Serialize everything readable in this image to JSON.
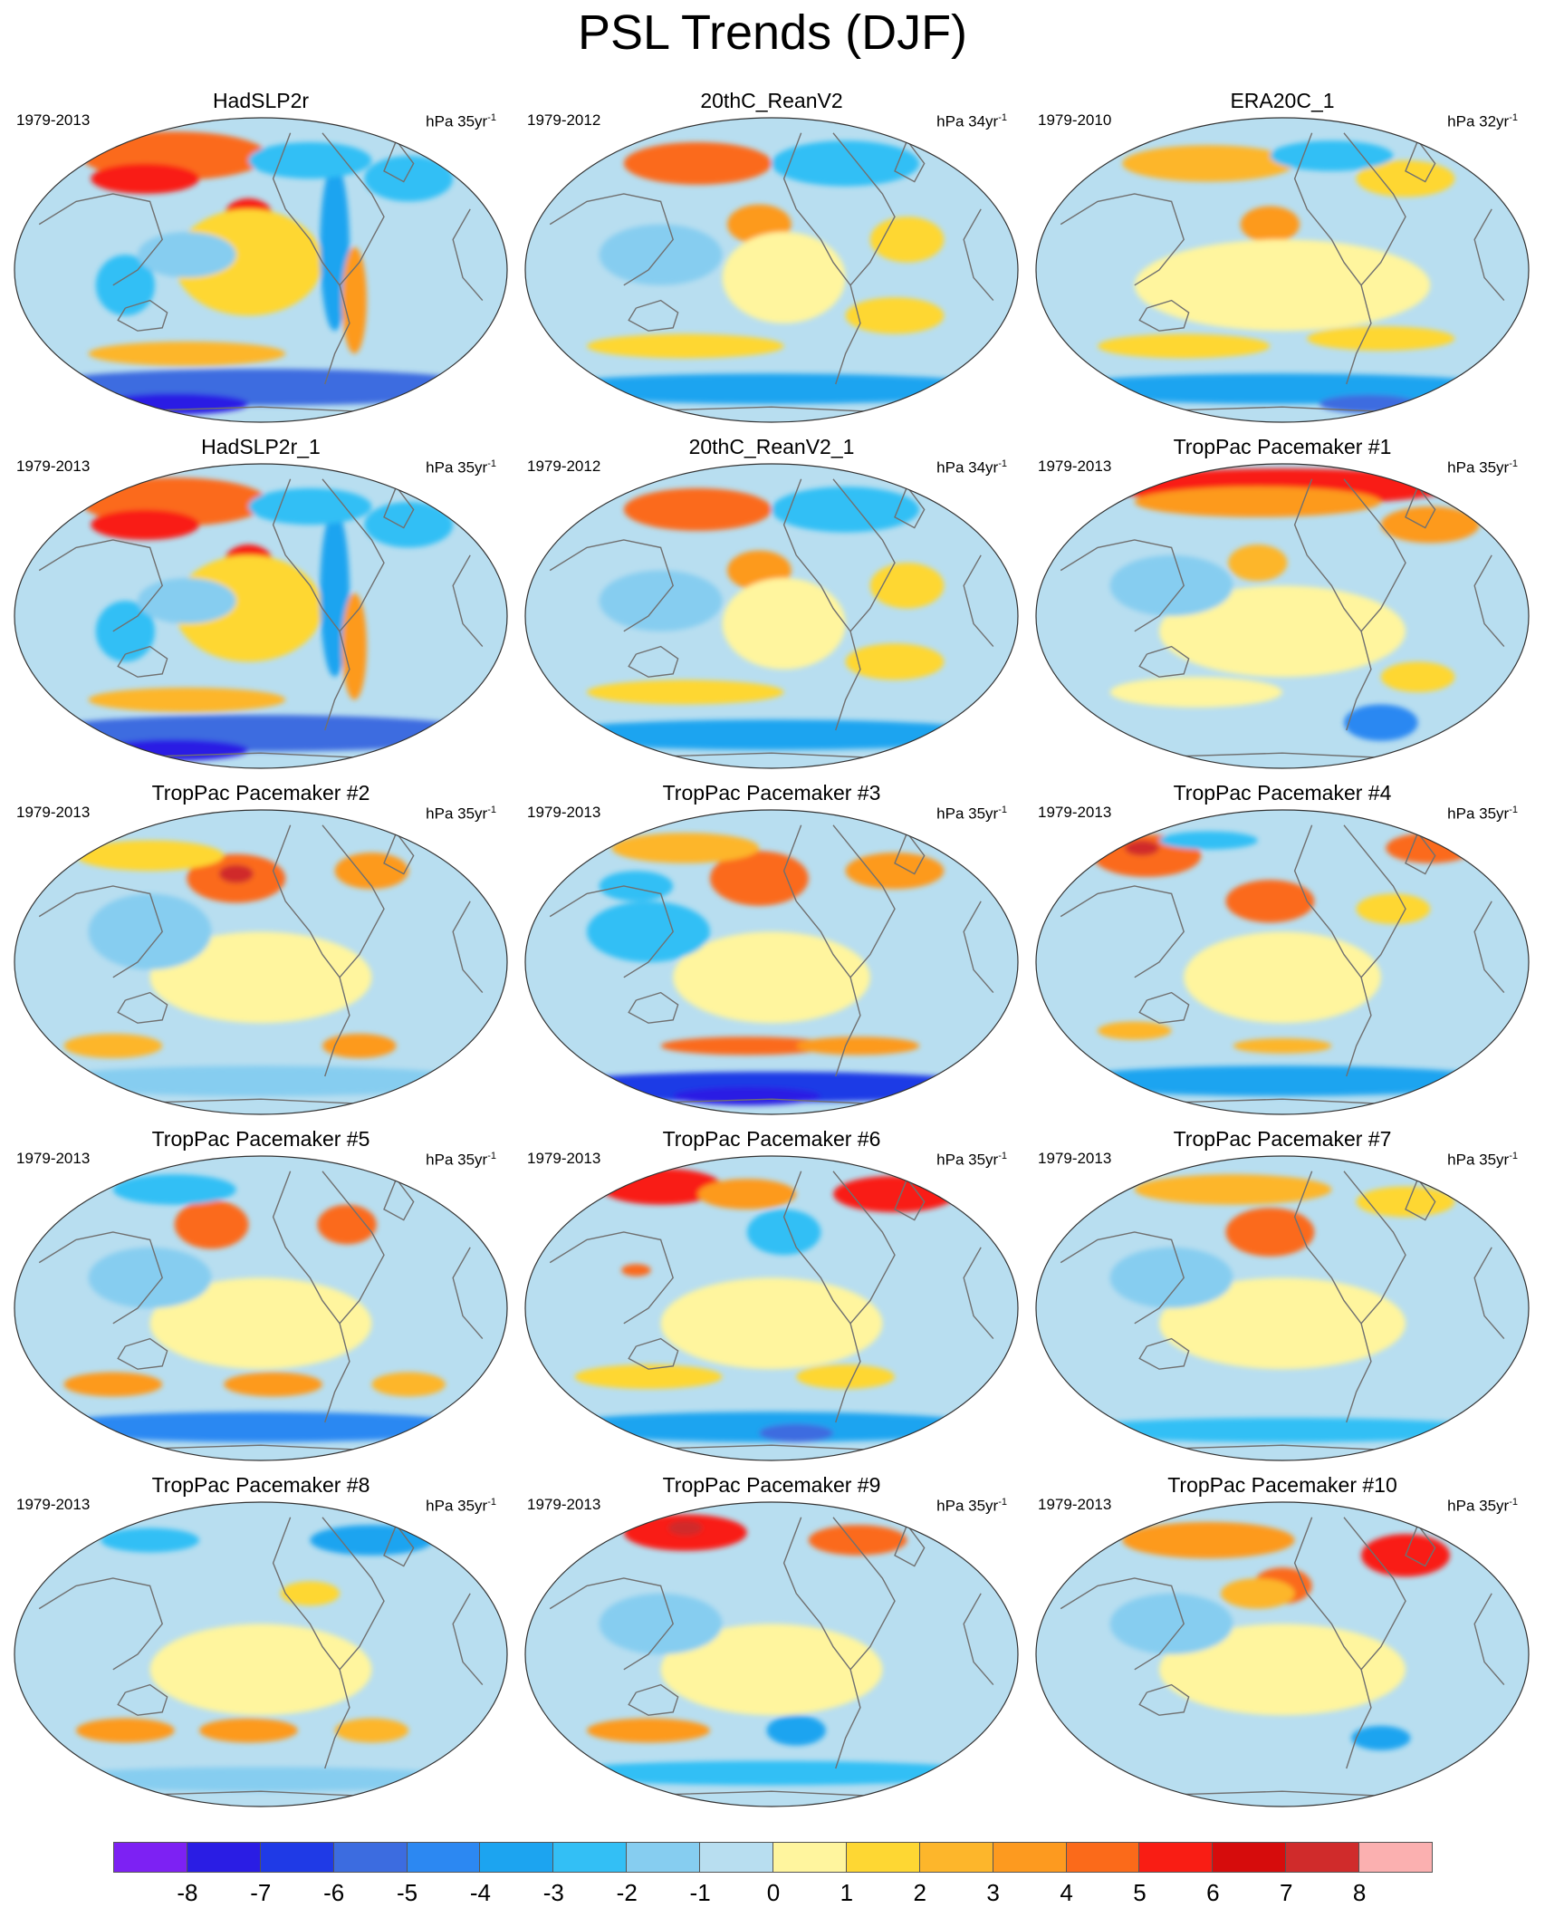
{
  "title": "PSL Trends (DJF)",
  "unit_base": "hPa",
  "unit_exp": "-1",
  "panels": [
    {
      "name": "HadSLP2r",
      "period": "1979-2013",
      "span": "35yr",
      "blobs": [
        [
          -0.35,
          -0.75,
          0.38,
          0.16,
          5
        ],
        [
          -0.47,
          -0.6,
          0.22,
          0.1,
          6
        ],
        [
          -0.05,
          -0.35,
          0.1,
          0.12,
          6
        ],
        [
          -0.05,
          -0.05,
          0.3,
          0.35,
          2
        ],
        [
          0.3,
          -0.15,
          0.06,
          0.55,
          -3
        ],
        [
          0.38,
          0.2,
          0.05,
          0.35,
          4
        ],
        [
          -0.55,
          0.1,
          0.12,
          0.2,
          -2
        ],
        [
          -0.3,
          0.55,
          0.4,
          0.08,
          3
        ],
        [
          0.0,
          0.77,
          0.95,
          0.12,
          -5
        ],
        [
          -0.35,
          0.88,
          0.3,
          0.07,
          -7
        ],
        [
          0.2,
          -0.72,
          0.25,
          0.12,
          -2
        ],
        [
          0.6,
          -0.6,
          0.18,
          0.15,
          -2
        ],
        [
          -0.3,
          -0.1,
          0.2,
          0.15,
          -1
        ]
      ]
    },
    {
      "name": "20thC_ReanV2",
      "period": "1979-2012",
      "span": "34yr",
      "blobs": [
        [
          -0.3,
          -0.7,
          0.3,
          0.14,
          5
        ],
        [
          -0.05,
          -0.3,
          0.13,
          0.13,
          4
        ],
        [
          0.05,
          0.05,
          0.25,
          0.3,
          1
        ],
        [
          0.5,
          0.3,
          0.2,
          0.12,
          2
        ],
        [
          -0.35,
          0.5,
          0.4,
          0.08,
          2
        ],
        [
          0.0,
          0.78,
          0.95,
          0.1,
          -3
        ],
        [
          -0.45,
          -0.1,
          0.25,
          0.2,
          -1
        ],
        [
          0.3,
          -0.7,
          0.3,
          0.15,
          -2
        ],
        [
          0.55,
          -0.2,
          0.15,
          0.15,
          2
        ]
      ]
    },
    {
      "name": "ERA20C_1",
      "period": "1979-2010",
      "span": "32yr",
      "blobs": [
        [
          -0.05,
          -0.3,
          0.12,
          0.12,
          4
        ],
        [
          -0.3,
          -0.7,
          0.35,
          0.12,
          3
        ],
        [
          0.5,
          -0.6,
          0.2,
          0.12,
          2
        ],
        [
          0.0,
          0.1,
          0.6,
          0.3,
          1
        ],
        [
          0.0,
          0.78,
          0.95,
          0.1,
          -3
        ],
        [
          0.35,
          0.88,
          0.2,
          0.06,
          -5
        ],
        [
          -0.4,
          0.5,
          0.35,
          0.08,
          2
        ],
        [
          0.4,
          0.45,
          0.3,
          0.08,
          2
        ],
        [
          0.2,
          -0.75,
          0.25,
          0.1,
          -2
        ]
      ]
    },
    {
      "name": "HadSLP2r_1",
      "period": "1979-2013",
      "span": "35yr",
      "blobs": [
        [
          -0.35,
          -0.75,
          0.38,
          0.16,
          5
        ],
        [
          -0.47,
          -0.6,
          0.22,
          0.1,
          6
        ],
        [
          -0.05,
          -0.35,
          0.1,
          0.12,
          6
        ],
        [
          -0.05,
          -0.05,
          0.3,
          0.35,
          2
        ],
        [
          0.3,
          -0.15,
          0.06,
          0.55,
          -3
        ],
        [
          0.38,
          0.2,
          0.05,
          0.35,
          4
        ],
        [
          -0.55,
          0.1,
          0.12,
          0.2,
          -2
        ],
        [
          -0.3,
          0.55,
          0.4,
          0.08,
          3
        ],
        [
          0.0,
          0.77,
          0.95,
          0.12,
          -5
        ],
        [
          -0.35,
          0.88,
          0.3,
          0.07,
          -7
        ],
        [
          0.2,
          -0.72,
          0.25,
          0.12,
          -2
        ],
        [
          0.6,
          -0.6,
          0.18,
          0.15,
          -2
        ],
        [
          -0.3,
          -0.1,
          0.2,
          0.15,
          -1
        ]
      ]
    },
    {
      "name": "20thC_ReanV2_1",
      "period": "1979-2012",
      "span": "34yr",
      "blobs": [
        [
          -0.3,
          -0.7,
          0.3,
          0.14,
          5
        ],
        [
          -0.05,
          -0.3,
          0.13,
          0.13,
          4
        ],
        [
          0.05,
          0.05,
          0.25,
          0.3,
          1
        ],
        [
          0.5,
          0.3,
          0.2,
          0.12,
          2
        ],
        [
          -0.35,
          0.5,
          0.4,
          0.08,
          2
        ],
        [
          0.0,
          0.78,
          0.95,
          0.1,
          -3
        ],
        [
          -0.45,
          -0.1,
          0.25,
          0.2,
          -1
        ],
        [
          0.3,
          -0.7,
          0.3,
          0.15,
          -2
        ],
        [
          0.55,
          -0.2,
          0.15,
          0.15,
          2
        ]
      ]
    },
    {
      "name": "TropPac Pacemaker #1",
      "period": "1979-2013",
      "span": "35yr",
      "blobs": [
        [
          0.0,
          -0.85,
          0.7,
          0.12,
          6
        ],
        [
          -0.1,
          -0.75,
          0.5,
          0.1,
          4
        ],
        [
          -0.1,
          -0.35,
          0.12,
          0.12,
          3
        ],
        [
          0.6,
          -0.6,
          0.2,
          0.12,
          4
        ],
        [
          0.0,
          0.1,
          0.5,
          0.3,
          1
        ],
        [
          0.4,
          0.7,
          0.15,
          0.12,
          -4
        ],
        [
          -0.35,
          0.5,
          0.35,
          0.1,
          1
        ],
        [
          -0.45,
          -0.2,
          0.25,
          0.2,
          -1
        ],
        [
          0.55,
          0.4,
          0.15,
          0.1,
          2
        ]
      ]
    },
    {
      "name": "TropPac Pacemaker #2",
      "period": "1979-2013",
      "span": "35yr",
      "blobs": [
        [
          -0.1,
          -0.55,
          0.2,
          0.16,
          5
        ],
        [
          -0.1,
          -0.58,
          0.07,
          0.06,
          8
        ],
        [
          0.45,
          -0.6,
          0.15,
          0.12,
          4
        ],
        [
          -0.45,
          -0.7,
          0.3,
          0.1,
          2
        ],
        [
          0.0,
          0.1,
          0.45,
          0.3,
          1
        ],
        [
          -0.6,
          0.55,
          0.2,
          0.08,
          3
        ],
        [
          0.4,
          0.55,
          0.15,
          0.08,
          4
        ],
        [
          0.0,
          0.78,
          0.9,
          0.1,
          -1
        ],
        [
          -0.45,
          -0.2,
          0.25,
          0.25,
          -1
        ]
      ]
    },
    {
      "name": "TropPac Pacemaker #3",
      "period": "1979-2013",
      "span": "35yr",
      "blobs": [
        [
          -0.05,
          -0.55,
          0.2,
          0.18,
          5
        ],
        [
          -0.35,
          -0.75,
          0.3,
          0.1,
          3
        ],
        [
          0.5,
          -0.6,
          0.2,
          0.12,
          4
        ],
        [
          0.0,
          0.1,
          0.4,
          0.3,
          1
        ],
        [
          -0.1,
          0.55,
          0.35,
          0.06,
          5
        ],
        [
          0.35,
          0.55,
          0.25,
          0.06,
          4
        ],
        [
          0.0,
          0.82,
          0.95,
          0.1,
          -6
        ],
        [
          -0.1,
          0.88,
          0.3,
          0.06,
          -7
        ],
        [
          -0.5,
          -0.2,
          0.25,
          0.2,
          -2
        ],
        [
          -0.55,
          -0.5,
          0.15,
          0.1,
          -2
        ]
      ]
    },
    {
      "name": "TropPac Pacemaker #4",
      "period": "1979-2013",
      "span": "35yr",
      "blobs": [
        [
          -0.55,
          -0.7,
          0.22,
          0.14,
          5
        ],
        [
          -0.57,
          -0.75,
          0.07,
          0.05,
          8
        ],
        [
          -0.05,
          -0.4,
          0.18,
          0.14,
          5
        ],
        [
          0.6,
          -0.75,
          0.18,
          0.1,
          5
        ],
        [
          0.45,
          -0.35,
          0.15,
          0.1,
          2
        ],
        [
          0.0,
          0.1,
          0.4,
          0.3,
          1
        ],
        [
          0.0,
          0.55,
          0.2,
          0.05,
          3
        ],
        [
          -0.6,
          0.45,
          0.15,
          0.06,
          3
        ],
        [
          0.0,
          0.78,
          0.9,
          0.1,
          -3
        ],
        [
          -0.3,
          -0.8,
          0.2,
          0.06,
          -2
        ]
      ]
    },
    {
      "name": "TropPac Pacemaker #5",
      "period": "1979-2013",
      "span": "35yr",
      "blobs": [
        [
          -0.2,
          -0.55,
          0.15,
          0.16,
          5
        ],
        [
          0.35,
          -0.55,
          0.12,
          0.13,
          5
        ],
        [
          -0.35,
          -0.78,
          0.25,
          0.1,
          -2
        ],
        [
          0.0,
          0.1,
          0.45,
          0.3,
          1
        ],
        [
          -0.6,
          0.5,
          0.2,
          0.08,
          4
        ],
        [
          0.05,
          0.5,
          0.2,
          0.08,
          4
        ],
        [
          0.6,
          0.5,
          0.15,
          0.08,
          3
        ],
        [
          0.0,
          0.78,
          0.9,
          0.1,
          -4
        ],
        [
          -0.45,
          -0.2,
          0.25,
          0.2,
          -1
        ]
      ]
    },
    {
      "name": "TropPac Pacemaker #6",
      "period": "1979-2013",
      "span": "35yr",
      "blobs": [
        [
          -0.45,
          -0.8,
          0.25,
          0.12,
          6
        ],
        [
          0.5,
          -0.75,
          0.25,
          0.12,
          6
        ],
        [
          -0.1,
          -0.75,
          0.2,
          0.1,
          4
        ],
        [
          0.0,
          0.1,
          0.45,
          0.3,
          1
        ],
        [
          0.05,
          -0.5,
          0.15,
          0.15,
          -2
        ],
        [
          0.0,
          0.78,
          0.9,
          0.1,
          -3
        ],
        [
          0.1,
          0.82,
          0.15,
          0.06,
          -5
        ],
        [
          -0.5,
          0.45,
          0.3,
          0.08,
          2
        ],
        [
          0.3,
          0.45,
          0.2,
          0.08,
          2
        ],
        [
          -0.55,
          -0.25,
          0.06,
          0.04,
          5
        ]
      ]
    },
    {
      "name": "TropPac Pacemaker #7",
      "period": "1979-2013",
      "span": "35yr",
      "blobs": [
        [
          -0.05,
          -0.5,
          0.18,
          0.16,
          5
        ],
        [
          -0.2,
          -0.78,
          0.4,
          0.1,
          3
        ],
        [
          0.5,
          -0.7,
          0.2,
          0.1,
          2
        ],
        [
          0.0,
          0.1,
          0.5,
          0.3,
          1
        ],
        [
          0.0,
          0.8,
          0.9,
          0.08,
          -2
        ],
        [
          -0.45,
          -0.2,
          0.25,
          0.2,
          -1
        ]
      ]
    },
    {
      "name": "TropPac Pacemaker #8",
      "period": "1979-2013",
      "span": "35yr",
      "blobs": [
        [
          0.45,
          -0.75,
          0.25,
          0.1,
          -3
        ],
        [
          -0.45,
          -0.75,
          0.2,
          0.08,
          -2
        ],
        [
          0.0,
          0.1,
          0.45,
          0.3,
          1
        ],
        [
          -0.55,
          0.5,
          0.2,
          0.08,
          4
        ],
        [
          -0.05,
          0.5,
          0.2,
          0.08,
          4
        ],
        [
          0.45,
          0.5,
          0.15,
          0.08,
          3
        ],
        [
          0.0,
          0.82,
          0.9,
          0.08,
          -1
        ],
        [
          0.2,
          -0.4,
          0.12,
          0.08,
          2
        ]
      ]
    },
    {
      "name": "TropPac Pacemaker #9",
      "period": "1979-2013",
      "span": "35yr",
      "blobs": [
        [
          -0.35,
          -0.8,
          0.25,
          0.12,
          6
        ],
        [
          -0.35,
          -0.83,
          0.07,
          0.05,
          8
        ],
        [
          0.35,
          -0.75,
          0.2,
          0.1,
          5
        ],
        [
          0.0,
          0.1,
          0.45,
          0.3,
          1
        ],
        [
          -0.5,
          0.5,
          0.25,
          0.08,
          4
        ],
        [
          0.1,
          0.5,
          0.12,
          0.1,
          -3
        ],
        [
          0.0,
          0.78,
          0.9,
          0.08,
          -2
        ],
        [
          -0.45,
          -0.2,
          0.25,
          0.2,
          -1
        ]
      ]
    },
    {
      "name": "TropPac Pacemaker #10",
      "period": "1979-2013",
      "span": "35yr",
      "blobs": [
        [
          -0.3,
          -0.75,
          0.35,
          0.12,
          4
        ],
        [
          0.5,
          -0.65,
          0.18,
          0.14,
          6
        ],
        [
          0.0,
          -0.45,
          0.12,
          0.12,
          5
        ],
        [
          0.0,
          0.1,
          0.5,
          0.3,
          1
        ],
        [
          -0.45,
          -0.2,
          0.25,
          0.2,
          -1
        ],
        [
          0.4,
          0.55,
          0.12,
          0.08,
          -3
        ],
        [
          -0.1,
          -0.4,
          0.15,
          0.1,
          3
        ]
      ]
    }
  ],
  "colorbar": {
    "colors": [
      "#7d21f3",
      "#2a1de4",
      "#1f3ae6",
      "#3c6ce0",
      "#2c88f2",
      "#1ca4f0",
      "#33bff5",
      "#86cdf0",
      "#b8def0",
      "#fff59e",
      "#fed733",
      "#fdb62b",
      "#fd9a1f",
      "#fb6a1a",
      "#f91d14",
      "#d60c0c",
      "#d02b2b",
      "#fbb0b0"
    ],
    "labels": [
      "-8",
      "-7",
      "-6",
      "-5",
      "-4",
      "-3",
      "-2",
      "-1",
      "0",
      "1",
      "2",
      "3",
      "4",
      "5",
      "6",
      "7",
      "8"
    ]
  }
}
